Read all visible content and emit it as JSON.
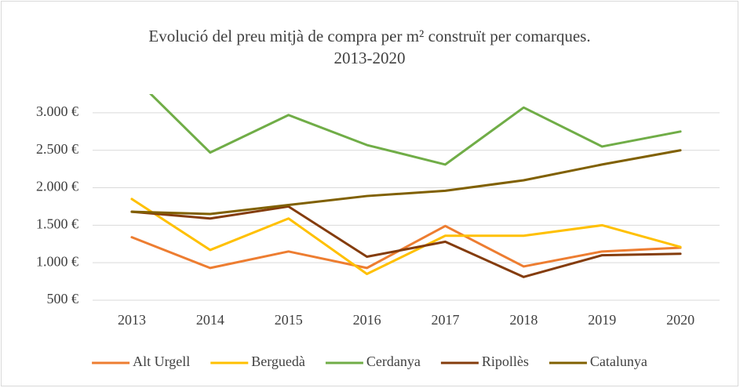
{
  "chart_data": {
    "type": "line",
    "title": [
      "Evolució del preu mitjà de compra per m² construït per comarques.",
      "2013-2020"
    ],
    "categories": [
      "2013",
      "2014",
      "2015",
      "2016",
      "2017",
      "2018",
      "2019",
      "2020"
    ],
    "series": [
      {
        "name": "Alt Urgell",
        "color": "#ED7D31",
        "values": [
          1340,
          930,
          1150,
          930,
          1490,
          950,
          1150,
          1200
        ]
      },
      {
        "name": "Berguedà",
        "color": "#FFC000",
        "values": [
          1850,
          1170,
          1590,
          850,
          1360,
          1360,
          1500,
          1210
        ]
      },
      {
        "name": "Cerdanya",
        "color": "#70AD47",
        "values": [
          3500,
          2470,
          2970,
          2570,
          2310,
          3070,
          2550,
          2750
        ]
      },
      {
        "name": "Ripollès",
        "color": "#843C0C",
        "values": [
          1680,
          1590,
          1750,
          1080,
          1280,
          810,
          1100,
          1120
        ]
      },
      {
        "name": "Catalunya",
        "color": "#806000",
        "values": [
          1680,
          1650,
          1770,
          1890,
          1960,
          2100,
          2310,
          2500
        ]
      }
    ],
    "ylim": [
      500,
      3250
    ],
    "yticks": [
      {
        "value": 500,
        "label": "500 €"
      },
      {
        "value": 1000,
        "label": "1.000 €"
      },
      {
        "value": 1500,
        "label": "1.500 €"
      },
      {
        "value": 2000,
        "label": "2.000 €"
      },
      {
        "value": 2500,
        "label": "2.500 €"
      },
      {
        "value": 3000,
        "label": "3.000 €"
      }
    ],
    "grid": true,
    "legend": "bottom"
  }
}
